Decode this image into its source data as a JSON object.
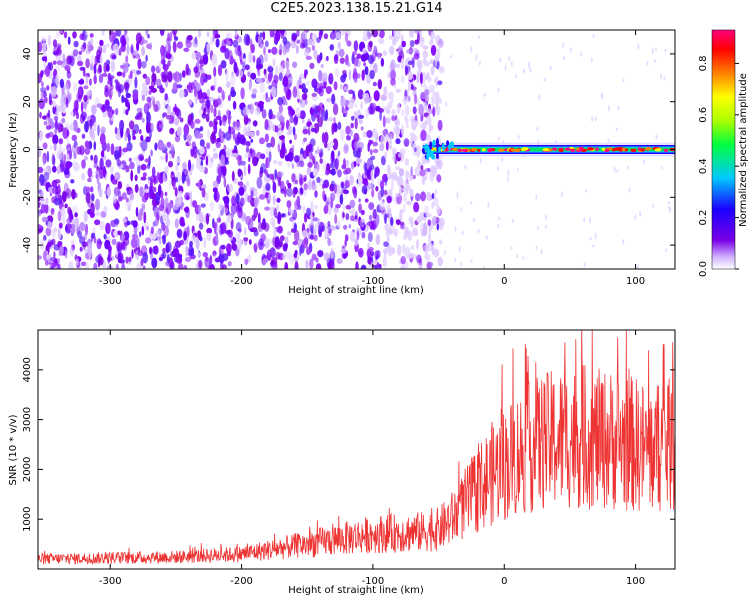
{
  "title": "C2E5.2023.138.15.21.G14",
  "chart_data": [
    {
      "type": "heatmap",
      "xlabel": "Height of straight line (km)",
      "ylabel": "Frequency (Hz)",
      "xlim": [
        -355,
        130
      ],
      "ylim": [
        -50,
        50
      ],
      "xticks": [
        -300,
        -200,
        -100,
        0,
        100
      ],
      "yticks": [
        -40,
        -20,
        0,
        20,
        40
      ],
      "colorbar": {
        "label": "Normalized spectral amplitude",
        "range": [
          0,
          0.93
        ],
        "ticks": [
          0.0,
          0.2,
          0.4,
          0.6,
          0.8
        ],
        "colormap": "rainbow (purple-blue-cyan-green-yellow-orange-red-magenta)"
      },
      "features": {
        "noise_region_x": [
          -355,
          -55
        ],
        "signal_line_x": [
          -62,
          130
        ],
        "signal_line_frequency": 0
      }
    },
    {
      "type": "line",
      "xlabel": "Height of straight line (km)",
      "ylabel": "SNR (10 * v/v)",
      "xlim": [
        -355,
        130
      ],
      "ylim": [
        0,
        4800
      ],
      "xticks": [
        -300,
        -200,
        -100,
        0,
        100
      ],
      "yticks": [
        1000,
        2000,
        3000,
        4000
      ],
      "series": [
        {
          "color": "#ee3333",
          "x": [
            -355,
            -300,
            -250,
            -200,
            -170,
            -150,
            -120,
            -100,
            -80,
            -60,
            -50,
            -40,
            -30,
            -20,
            -10,
            0,
            10,
            20,
            30,
            40,
            50,
            60,
            70,
            80,
            90,
            100,
            110,
            120,
            130
          ],
          "y": [
            200,
            220,
            240,
            300,
            420,
            500,
            620,
            700,
            720,
            750,
            800,
            1000,
            1300,
            1600,
            1900,
            2100,
            2300,
            2450,
            2550,
            2600,
            2650,
            2650,
            2600,
            2600,
            2550,
            2500,
            2400,
            2450,
            2500
          ]
        }
      ]
    }
  ]
}
